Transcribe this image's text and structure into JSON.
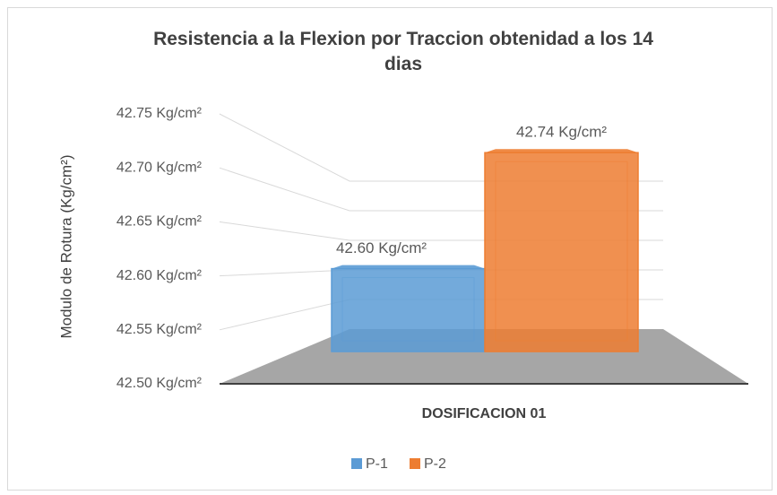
{
  "chart_data": {
    "type": "bar3d",
    "title": "Resistencia a la Flexion por Traccion obtenidad a los 14 dias",
    "y_label": "Modulo de Rotura (Kg/cm²)",
    "categories": [
      "DOSIFICACION 01"
    ],
    "series": [
      {
        "name": "P-1",
        "color": "#5b9bd5",
        "values": [
          42.6
        ],
        "value_labels": [
          "42.60 Kg/cm²"
        ]
      },
      {
        "name": "P-2",
        "color": "#ed7d31",
        "values": [
          42.74
        ],
        "value_labels": [
          "42.74 Kg/cm²"
        ]
      }
    ],
    "ylim": [
      42.5,
      42.75
    ],
    "yticks": [
      {
        "value": 42.5,
        "label": "42.50 Kg/cm²"
      },
      {
        "value": 42.55,
        "label": "42.55 Kg/cm²"
      },
      {
        "value": 42.6,
        "label": "42.60 Kg/cm²"
      },
      {
        "value": 42.65,
        "label": "42.65 Kg/cm²"
      },
      {
        "value": 42.7,
        "label": "42.70 Kg/cm²"
      },
      {
        "value": 42.75,
        "label": "42.75 Kg/cm²"
      }
    ],
    "grid": true,
    "legend": "bottom"
  }
}
